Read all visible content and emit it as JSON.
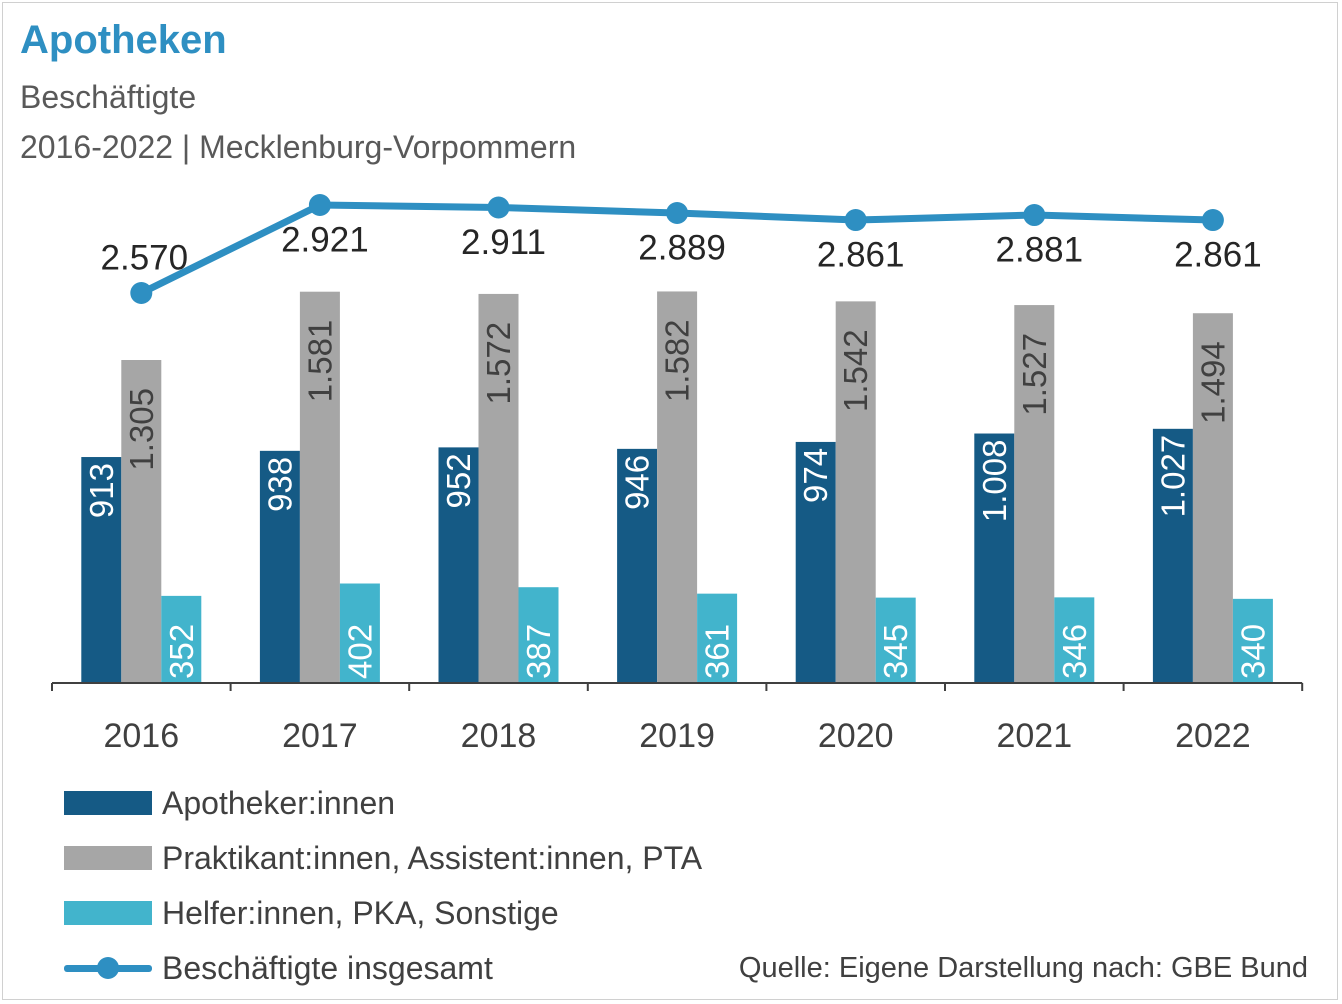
{
  "title": "Apotheken",
  "subtitle": "Beschäftigte",
  "subtitle2": "2016-2022 | Mecklenburg-Vorpommern",
  "source": "Quelle: Eigene Darstellung nach: GBE Bund",
  "colors": {
    "apotheker": "#155a85",
    "praktikant": "#a6a6a6",
    "helfer": "#42b4cc",
    "total": "#2e8fc2"
  },
  "legend": {
    "apotheker": "Apotheker:innen",
    "praktikant": "Praktikant:innen, Assistent:innen, PTA",
    "helfer": "Helfer:innen, PKA, Sonstige",
    "total": "Beschäftigte insgesamt"
  },
  "chart_data": {
    "type": "bar",
    "categories": [
      "2016",
      "2017",
      "2018",
      "2019",
      "2020",
      "2021",
      "2022"
    ],
    "series": [
      {
        "name": "Apotheker:innen",
        "values": [
          913,
          938,
          952,
          946,
          974,
          1008,
          1027
        ],
        "labels": [
          "913",
          "938",
          "952",
          "946",
          "974",
          "1.008",
          "1.027"
        ]
      },
      {
        "name": "Praktikant:innen, Assistent:innen, PTA",
        "values": [
          1305,
          1581,
          1572,
          1582,
          1542,
          1527,
          1494
        ],
        "labels": [
          "1.305",
          "1.581",
          "1.572",
          "1.582",
          "1.542",
          "1.527",
          "1.494"
        ]
      },
      {
        "name": "Helfer:innen, PKA, Sonstige",
        "values": [
          352,
          402,
          387,
          361,
          345,
          346,
          340
        ],
        "labels": [
          "352",
          "402",
          "387",
          "361",
          "345",
          "346",
          "340"
        ]
      }
    ],
    "line_series": {
      "name": "Beschäftigte insgesamt",
      "type": "line",
      "values": [
        2570,
        2921,
        2911,
        2889,
        2861,
        2881,
        2861
      ],
      "labels": [
        "2.570",
        "2.921",
        "2.911",
        "2.889",
        "2.861",
        "2.881",
        "2.861"
      ]
    },
    "ylim": [
      0,
      1600
    ],
    "line_ylim": [
      1500,
      3000
    ],
    "grid": false,
    "legend_position": "bottom-left"
  }
}
